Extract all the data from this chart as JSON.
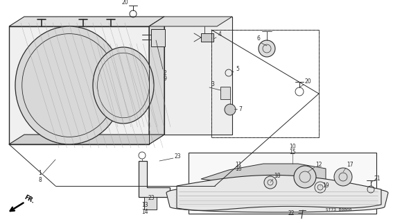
{
  "background_color": "#ffffff",
  "line_color": "#2a2a2a",
  "diagram_code": "ST73 B0B00",
  "fr_label": "FR.",
  "figsize": [
    5.67,
    3.2
  ],
  "dpi": 100
}
